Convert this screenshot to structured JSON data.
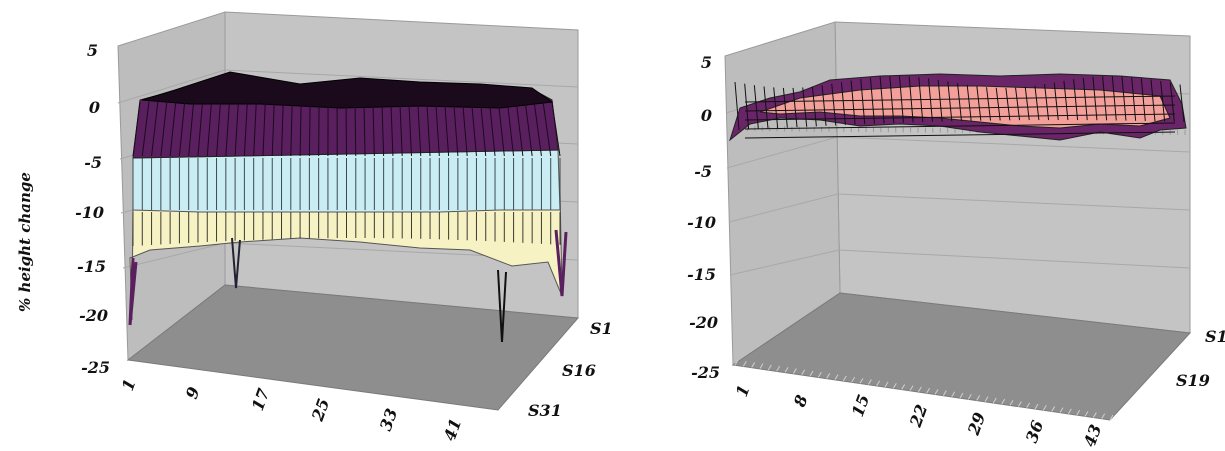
{
  "charts": [
    {
      "ylabel": "% height change",
      "z_ticks": [
        "5",
        "0",
        "-5",
        "-10",
        "-15",
        "-20",
        "-25"
      ],
      "x_ticks": [
        "1",
        "9",
        "17",
        "25",
        "33",
        "41"
      ],
      "depth_ticks": [
        "S1",
        "S16",
        "S31"
      ]
    },
    {
      "ylabel": "",
      "z_ticks": [
        "5",
        "0",
        "-5",
        "-10",
        "-15",
        "-20",
        "-25"
      ],
      "x_ticks": [
        "1",
        "8",
        "15",
        "22",
        "29",
        "36",
        "43"
      ],
      "depth_ticks": [
        "S1",
        "S19"
      ]
    }
  ],
  "chart_data": [
    {
      "type": "surface",
      "ylabel": "% height change",
      "zlim": [
        -25,
        5
      ],
      "z_ticks": [
        5,
        0,
        -5,
        -10,
        -15,
        -20,
        -25
      ],
      "x_ticks": [
        1,
        9,
        17,
        25,
        33,
        41
      ],
      "depth_ticks": [
        "S1",
        "S16",
        "S31"
      ],
      "band_colors": [
        "#5a1f5e",
        "#c9edf2",
        "#f7f2c4"
      ],
      "x_count": 46,
      "surface_rows": [
        {
          "row": "front",
          "values": [
            -21,
            -15,
            -14.5,
            -14,
            -14,
            -14,
            -14,
            -14.5,
            -14,
            -14,
            -13.5,
            -14,
            -14,
            -14,
            -14,
            -14,
            -13.5,
            -14,
            -13.5,
            -13.5,
            -13.5,
            -14,
            -13.5,
            -13.5,
            -13,
            -12.5,
            -13,
            -13,
            -13,
            -13.5,
            -13,
            -13,
            -13,
            -13.5,
            -13,
            -13,
            -13,
            -13.5,
            -13,
            -13,
            -13.5,
            -13.5,
            -14,
            -14.5,
            -15.5,
            -22
          ]
        },
        {
          "row": "band-1",
          "values": [
            -10,
            -9.5,
            -9.5,
            -9.5,
            -9.5,
            -9.5,
            -9.5,
            -9.5,
            -9.5,
            -9.5,
            -9.5,
            -9.5,
            -9.5,
            -9.5,
            -9.5,
            -9.5,
            -9.5,
            -9.5,
            -9.5,
            -9.5,
            -9.5,
            -9.5,
            -9.5,
            -9.5,
            -9.5,
            -9.5,
            -9.5,
            -9.5,
            -9.5,
            -9.5,
            -9.5,
            -9.5,
            -9.5,
            -9.5,
            -9.5,
            -9.5,
            -9.5,
            -9.5,
            -9.5,
            -9.5,
            -9.5,
            -9.5,
            -9.5,
            -9.5,
            -10,
            -10.5
          ]
        },
        {
          "row": "band-2",
          "values": [
            -5,
            -5,
            -5,
            -5,
            -5,
            -5,
            -5,
            -5,
            -5,
            -5,
            -5,
            -5,
            -5,
            -5,
            -5,
            -5,
            -5,
            -5,
            -5,
            -5,
            -5,
            -5,
            -5,
            -5,
            -5,
            -5,
            -5,
            -5,
            -5,
            -5,
            -5,
            -5,
            -5,
            -5,
            -5,
            -5,
            -5,
            -5,
            -5,
            -5,
            -5,
            -5,
            -5,
            -5,
            -5.5,
            -6
          ]
        },
        {
          "row": "top",
          "values": [
            -1,
            0,
            0.5,
            0.5,
            0.5,
            1,
            0.5,
            0.5,
            0.5,
            0.5,
            0.5,
            0.5,
            0.5,
            0.5,
            0.5,
            0.5,
            0.5,
            0.5,
            0.5,
            0.5,
            0.5,
            0.5,
            0.5,
            0.5,
            0.5,
            0.5,
            0.5,
            0.5,
            0.5,
            0.5,
            0.5,
            0.5,
            0.5,
            0.5,
            0.5,
            0.5,
            0.5,
            0.5,
            0.5,
            0.5,
            0.5,
            0.5,
            0.5,
            0,
            -0.5,
            -1.5
          ]
        }
      ]
    },
    {
      "type": "surface",
      "ylabel": "",
      "zlim": [
        -25,
        5
      ],
      "z_ticks": [
        5,
        0,
        -5,
        -10,
        -15,
        -20,
        -25
      ],
      "x_ticks": [
        1,
        8,
        15,
        22,
        29,
        36,
        43
      ],
      "depth_ticks": [
        "S1",
        "S19"
      ],
      "band_colors": [
        "#6a2468",
        "#f4a09a"
      ],
      "x_count": 46,
      "surface_rows": [
        {
          "row": "front",
          "values": [
            -2.5,
            -1.5,
            -0.5,
            0,
            0,
            -0.5,
            0,
            0.5,
            0,
            0,
            0.5,
            0,
            -0.5,
            0,
            0,
            0.5,
            0,
            -0.5,
            0,
            0,
            0.5,
            0,
            -0.5,
            0,
            0,
            0.5,
            0,
            0,
            -0.5,
            0,
            0.5,
            0,
            -0.5,
            0,
            0,
            0.5,
            0,
            -0.5,
            0,
            0,
            0.5,
            0,
            -0.5,
            0,
            -1,
            -2.5
          ]
        },
        {
          "row": "top",
          "values": [
            0,
            0.5,
            1,
            1.5,
            1.5,
            1,
            1.5,
            2,
            1.5,
            1.5,
            2,
            1.5,
            1,
            1.5,
            1.5,
            2,
            1.5,
            1,
            1.5,
            1.5,
            2,
            1.5,
            1,
            1.5,
            1.5,
            2,
            1.5,
            1.5,
            1,
            1.5,
            2,
            1.5,
            1,
            1.5,
            1.5,
            2,
            1.5,
            1,
            1.5,
            1.5,
            2,
            1.5,
            1,
            1.5,
            0.5,
            0
          ]
        }
      ]
    }
  ]
}
